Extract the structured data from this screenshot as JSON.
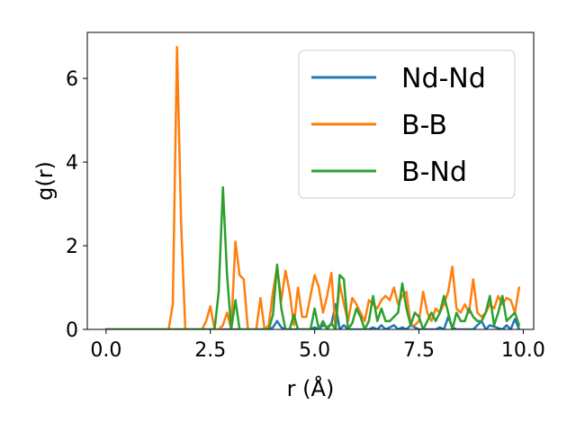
{
  "chart_data": {
    "type": "line",
    "xlabel": "r (Å)",
    "ylabel": "g(r)",
    "xlim": [
      -0.45,
      10.25
    ],
    "ylim": [
      0,
      7.1
    ],
    "xticks": [
      0.0,
      2.5,
      5.0,
      7.5,
      10.0
    ],
    "xtick_labels": [
      "0.0",
      "2.5",
      "5.0",
      "7.5",
      "10.0"
    ],
    "yticks": [
      0,
      2,
      4,
      6
    ],
    "ytick_labels": [
      "0",
      "2",
      "4",
      "6"
    ],
    "grid": false,
    "legend_position": "top-right",
    "series": [
      {
        "name": "Nd-Nd",
        "color": "#1f77b4",
        "x": [
          0.0,
          1.0,
          2.0,
          3.0,
          3.9,
          4.0,
          4.1,
          4.2,
          4.3,
          4.4,
          4.9,
          5.0,
          5.1,
          5.2,
          5.3,
          5.4,
          5.5,
          5.6,
          5.7,
          5.8,
          6.3,
          6.4,
          6.5,
          6.6,
          6.7,
          6.8,
          6.9,
          7.0,
          7.1,
          7.2,
          7.3,
          7.4,
          7.5,
          7.9,
          8.0,
          8.1,
          8.2,
          8.3,
          8.4,
          8.8,
          8.9,
          9.0,
          9.1,
          9.2,
          9.5,
          9.6,
          9.7,
          9.8,
          9.9
        ],
        "y": [
          0,
          0,
          0,
          0,
          0,
          0.05,
          0.2,
          0.05,
          0,
          0,
          0,
          0.05,
          0,
          0.1,
          0.05,
          0.12,
          0.6,
          0,
          0.1,
          0,
          0,
          0.05,
          0,
          0.1,
          0,
          0.05,
          0.1,
          0,
          0.05,
          0,
          0.1,
          0.05,
          0,
          0,
          0.05,
          0,
          0.3,
          0.05,
          0,
          0,
          0.1,
          0.2,
          0,
          0.1,
          0,
          0.1,
          0,
          0.25,
          0
        ]
      },
      {
        "name": "B-B",
        "color": "#ff7f0e",
        "x": [
          0.0,
          0.5,
          1.0,
          1.5,
          1.6,
          1.7,
          1.8,
          1.9,
          2.0,
          2.1,
          2.2,
          2.3,
          2.4,
          2.5,
          2.6,
          2.7,
          2.8,
          2.9,
          3.0,
          3.1,
          3.2,
          3.3,
          3.4,
          3.5,
          3.6,
          3.7,
          3.8,
          3.9,
          4.0,
          4.1,
          4.2,
          4.3,
          4.4,
          4.5,
          4.6,
          4.7,
          4.8,
          4.9,
          5.0,
          5.1,
          5.2,
          5.3,
          5.4,
          5.5,
          5.6,
          5.7,
          5.8,
          5.9,
          6.0,
          6.1,
          6.2,
          6.3,
          6.4,
          6.5,
          6.6,
          6.7,
          6.8,
          6.9,
          7.0,
          7.1,
          7.2,
          7.3,
          7.4,
          7.5,
          7.6,
          7.7,
          7.8,
          7.9,
          8.0,
          8.1,
          8.2,
          8.3,
          8.4,
          8.5,
          8.6,
          8.7,
          8.8,
          8.9,
          9.0,
          9.1,
          9.2,
          9.3,
          9.4,
          9.5,
          9.6,
          9.7,
          9.8,
          9.9
        ],
        "y": [
          0,
          0,
          0,
          0,
          0.6,
          6.75,
          2.5,
          0,
          0,
          0,
          0,
          0,
          0.2,
          0.55,
          0,
          0,
          0.1,
          0.4,
          0,
          2.1,
          1.3,
          1.2,
          0,
          0,
          0,
          0.75,
          0,
          0.1,
          0.9,
          1.5,
          0.7,
          1.4,
          0.9,
          0.1,
          1.0,
          0.3,
          0.3,
          0.8,
          1.3,
          1.0,
          0.4,
          0.8,
          1.35,
          0,
          1.1,
          0.6,
          0.2,
          0.75,
          0.6,
          0.4,
          0.2,
          0.7,
          0.6,
          0.5,
          0.7,
          0.8,
          0.7,
          1.0,
          0.6,
          0.8,
          0.9,
          0.1,
          0.1,
          0.2,
          0.9,
          0.4,
          0.2,
          0.5,
          0.4,
          0.6,
          0.9,
          1.5,
          0.5,
          0.4,
          0.6,
          0.4,
          1.2,
          0.4,
          0.3,
          0.4,
          0.6,
          0.5,
          0.8,
          0.6,
          0.75,
          0.7,
          0.4,
          1.0
        ]
      },
      {
        "name": "B-Nd",
        "color": "#2ca02c",
        "x": [
          0.0,
          1.0,
          2.0,
          2.5,
          2.6,
          2.7,
          2.8,
          2.9,
          3.0,
          3.1,
          3.2,
          3.3,
          3.4,
          3.5,
          3.6,
          3.7,
          3.8,
          3.9,
          4.0,
          4.1,
          4.2,
          4.3,
          4.4,
          4.5,
          4.6,
          4.7,
          4.8,
          4.9,
          5.0,
          5.1,
          5.2,
          5.3,
          5.4,
          5.5,
          5.6,
          5.7,
          5.8,
          5.9,
          6.0,
          6.1,
          6.2,
          6.3,
          6.4,
          6.5,
          6.6,
          6.7,
          6.8,
          6.9,
          7.0,
          7.1,
          7.2,
          7.3,
          7.4,
          7.5,
          7.6,
          7.7,
          7.8,
          7.9,
          8.0,
          8.1,
          8.2,
          8.3,
          8.4,
          8.5,
          8.6,
          8.7,
          8.8,
          8.9,
          9.0,
          9.1,
          9.2,
          9.3,
          9.4,
          9.5,
          9.6,
          9.7,
          9.8,
          9.9
        ],
        "y": [
          0,
          0,
          0,
          0,
          0,
          0.9,
          3.4,
          1.3,
          0,
          0.7,
          0,
          0,
          0,
          0,
          0,
          0,
          0,
          0,
          0.35,
          1.55,
          0.5,
          0,
          0,
          0.35,
          0,
          0,
          0,
          0,
          0.5,
          0,
          0.2,
          0,
          0.15,
          0,
          1.3,
          1.2,
          0,
          0.15,
          0.5,
          0.3,
          0,
          0.2,
          0.8,
          0.2,
          0.5,
          0.2,
          0.2,
          0.3,
          0.4,
          1.1,
          0.5,
          0.1,
          0.4,
          0.3,
          0,
          0.2,
          0.4,
          0.2,
          0.4,
          0.8,
          0.4,
          0,
          0.4,
          0.2,
          0.2,
          0.5,
          0.3,
          0.2,
          0.2,
          0.4,
          0.8,
          0.1,
          0.4,
          0.8,
          0.2,
          0.3,
          0.4,
          0.1
        ]
      }
    ]
  }
}
